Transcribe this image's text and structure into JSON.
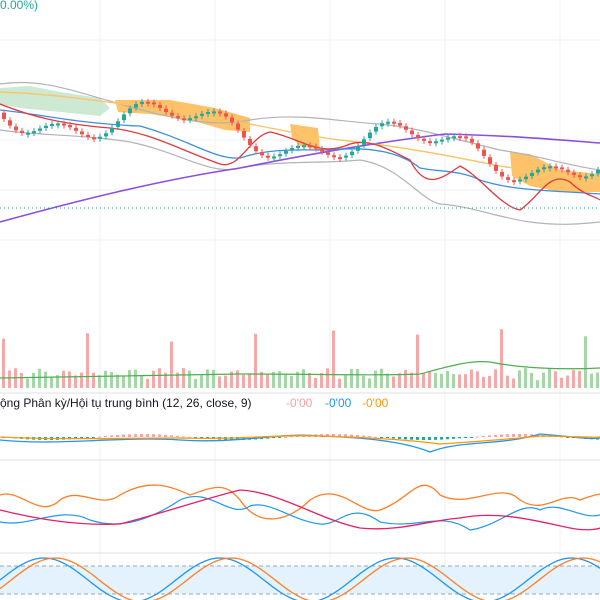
{
  "header": {
    "change": "0.00%)"
  },
  "macd": {
    "title": "ộng Phân kỳ/Hội tụ trung bình (12, 26, close, 9)",
    "values": [
      "-0'00",
      "-0'00",
      "-0'00"
    ]
  }
}
